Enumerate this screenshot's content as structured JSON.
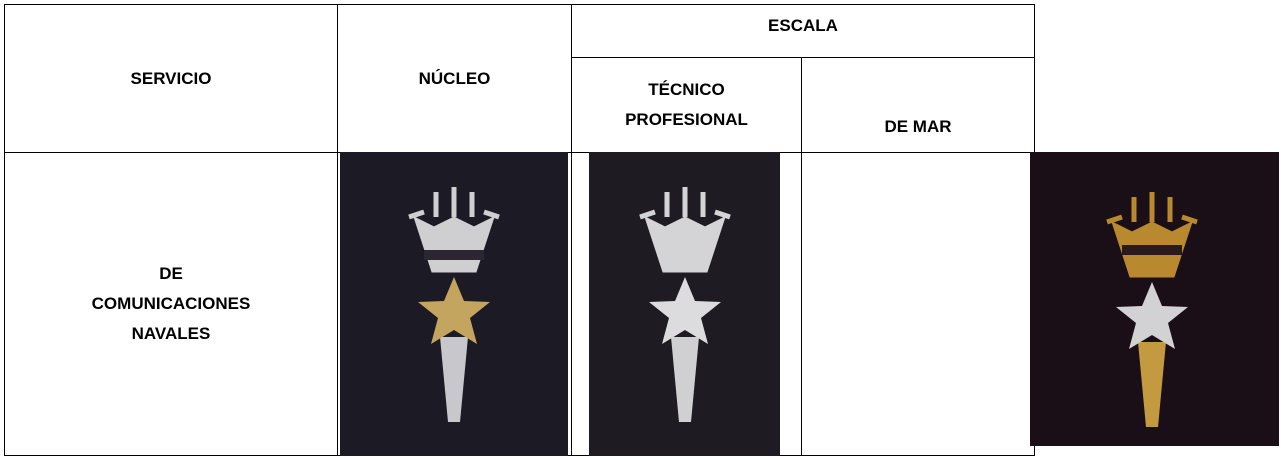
{
  "table": {
    "header": {
      "servicio": "SERVICIO",
      "nucleo": "NÚCLEO",
      "escala": "ESCALA",
      "tecnico_profesional": [
        "TÉCNICO",
        "PROFESIONAL"
      ],
      "de_mar": "DE MAR"
    },
    "rows": [
      {
        "servicio": [
          "DE",
          "COMUNICACIONES",
          "NAVALES"
        ]
      }
    ]
  }
}
